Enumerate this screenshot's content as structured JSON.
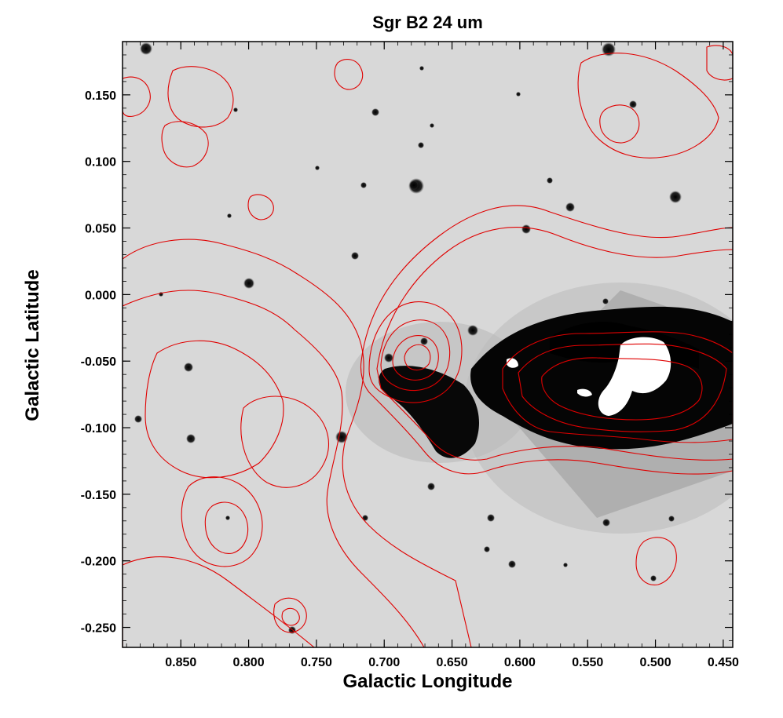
{
  "chart_data": {
    "type": "image-contour",
    "title": "Sgr B2 24 um",
    "xlabel": "Galactic Longitude",
    "ylabel": "Galactic Latitude",
    "xlim": [
      0.893,
      0.443
    ],
    "ylim": [
      -0.265,
      0.19
    ],
    "x_ticks": [
      0.85,
      0.8,
      0.75,
      0.7,
      0.65,
      0.6,
      0.55,
      0.5,
      0.45
    ],
    "x_tick_labels": [
      "0.850",
      "0.800",
      "0.750",
      "0.700",
      "0.650",
      "0.600",
      "0.550",
      "0.500",
      "0.450"
    ],
    "y_ticks": [
      0.15,
      0.1,
      0.05,
      0.0,
      -0.05,
      -0.1,
      -0.15,
      -0.2,
      -0.25
    ],
    "y_tick_labels": [
      "0.150",
      "0.100",
      "0.050",
      "0.000",
      "-0.050",
      "-0.100",
      "-0.150",
      "-0.200",
      "-0.250"
    ],
    "image_colormap": "inverted grayscale",
    "contour_color": "#e00000",
    "background_color": "#d8d8d8"
  }
}
